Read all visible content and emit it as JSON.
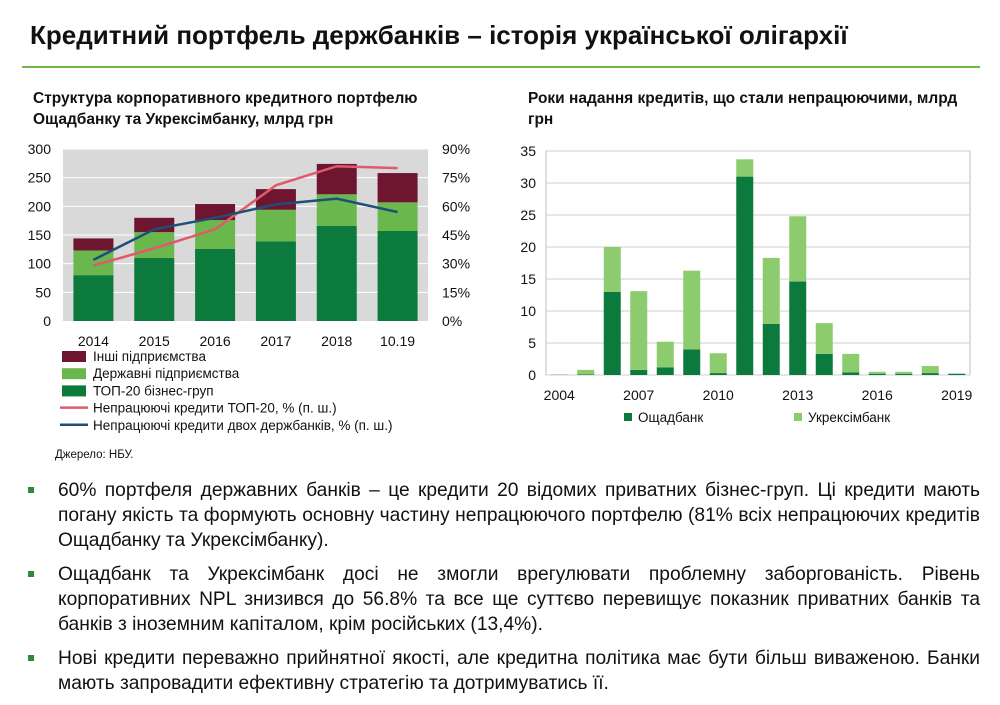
{
  "page": {
    "title": "Кредитний портфель держбанків – історія української олігархії",
    "source": "Джерело: НБУ.",
    "bullets": [
      "60% портфеля державних банків – це кредити 20 відомих приватних бізнес-груп. Ці кредити мають погану якість та формують основну частину непрацюючого портфелю (81% всіх непрацюючих кредитів Ощадбанку та Укрексімбанку).",
      "Ощадбанк та Укрексімбанк досі не змогли врегулювати проблемну заборгованість. Рівень корпоративних NPL знизився до 56.8% та все ще суттєво перевищує показник приватних банків та банків з іноземним капіталом, крім російських (13,4%).",
      "Нові кредити переважно прийнятної якості, але кредитна політика має бути більш виваженою. Банки мають запровадити ефективну стратегію та дотримуватись її."
    ]
  },
  "chart_data": [
    {
      "type": "bar",
      "stacked": true,
      "title": "Структура корпоративного кредитного портфелю Ощадбанку та Укрексімбанку, млрд грн",
      "categories": [
        "2014",
        "2015",
        "2016",
        "2017",
        "2018",
        "10.19"
      ],
      "ylim": [
        0,
        300
      ],
      "yticks": [
        "0",
        "50",
        "100",
        "150",
        "200",
        "250",
        "300"
      ],
      "y2lim": [
        0,
        90
      ],
      "y2ticks": [
        "0%",
        "15%",
        "30%",
        "45%",
        "60%",
        "75%",
        "90%"
      ],
      "series": [
        {
          "name": "ТОП-20 бізнес-груп",
          "color": "#0b7a3c",
          "values": [
            80,
            110,
            126,
            139,
            166,
            157
          ]
        },
        {
          "name": "Державні підприємства",
          "color": "#6ab84d",
          "values": [
            43,
            45,
            50,
            55,
            55,
            50
          ]
        },
        {
          "name": "Інші підприємства",
          "color": "#6e1530",
          "values": [
            21,
            25,
            28,
            36,
            53,
            51
          ]
        }
      ],
      "lines": [
        {
          "name": "Непрацюючі кредити ТОП-20, % (п. ш.)",
          "color": "#e05a6b",
          "values": [
            29,
            38,
            48,
            71,
            81,
            80
          ]
        },
        {
          "name": "Непрацюючі кредити двох держбанків, % (п. ш.)",
          "color": "#1f4e79",
          "values": [
            32,
            48,
            54,
            61,
            64,
            57
          ]
        }
      ],
      "legend": [
        "Інші підприємства",
        "Державні підприємства",
        "ТОП-20 бізнес-груп",
        "Непрацюючі кредити ТОП-20, % (п. ш.)",
        "Непрацюючі кредити двох держбанків, % (п. ш.)"
      ]
    },
    {
      "type": "bar",
      "stacked": true,
      "title": "Роки надання кредитів, що стали непрацюючими, млрд грн",
      "years": [
        2004,
        2005,
        2006,
        2007,
        2008,
        2009,
        2010,
        2011,
        2012,
        2013,
        2014,
        2015,
        2016,
        2017,
        2018,
        2019
      ],
      "xticks": [
        "2004",
        "2007",
        "2010",
        "2013",
        "2016",
        "2019"
      ],
      "ylim": [
        0,
        35
      ],
      "yticks": [
        "0",
        "5",
        "10",
        "15",
        "20",
        "25",
        "30",
        "35"
      ],
      "series": [
        {
          "name": "Ощадбанк",
          "color": "#0b7a3c",
          "values": [
            0,
            0.1,
            13,
            0.8,
            1.2,
            4,
            0.3,
            31,
            8,
            14.6,
            3.3,
            0.4,
            0.2,
            0.2,
            0.3,
            0.2
          ]
        },
        {
          "name": "Укрексімбанк",
          "color": "#8dcc6e",
          "values": [
            0.1,
            0.7,
            7,
            12.3,
            4,
            12.3,
            3.1,
            2.7,
            10.3,
            10.2,
            4.8,
            2.9,
            0.3,
            0.3,
            1.1,
            0
          ]
        }
      ],
      "legend": [
        "Ощадбанк",
        "Укрексімбанк"
      ]
    }
  ]
}
